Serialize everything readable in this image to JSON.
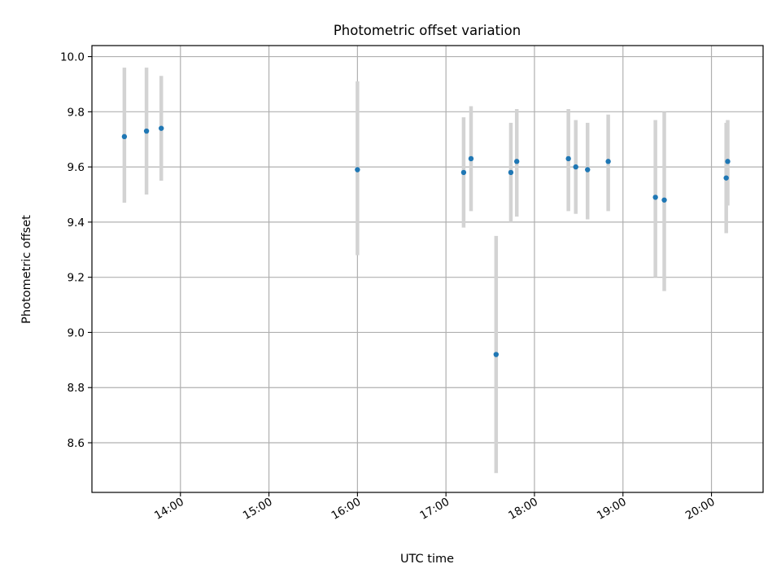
{
  "chart_data": {
    "type": "scatter",
    "title": "Photometric offset variation",
    "xlabel": "UTC time",
    "ylabel": "Photometric offset",
    "x_axis_kind": "time-of-day",
    "xlim": [
      "13:00",
      "20:35"
    ],
    "ylim": [
      8.42,
      10.04
    ],
    "x_ticks": [
      "14:00",
      "15:00",
      "16:00",
      "17:00",
      "18:00",
      "19:00",
      "20:00"
    ],
    "y_ticks": [
      "8.6",
      "8.8",
      "9.0",
      "9.2",
      "9.4",
      "9.6",
      "9.8",
      "10.0"
    ],
    "grid": true,
    "legend": "none",
    "colors": {
      "point": "#1f77b4",
      "error_bar": "#d3d3d3",
      "grid": "#b0b0b0",
      "axes": "#000000"
    },
    "series": [
      {
        "points": [
          {
            "x": "13:22",
            "y": 9.71,
            "ylo": 9.47,
            "yhi": 9.96
          },
          {
            "x": "13:37",
            "y": 9.73,
            "ylo": 9.5,
            "yhi": 9.96
          },
          {
            "x": "13:47",
            "y": 9.74,
            "ylo": 9.55,
            "yhi": 9.93
          },
          {
            "x": "16:00",
            "y": 9.59,
            "ylo": 9.28,
            "yhi": 9.91
          },
          {
            "x": "17:12",
            "y": 9.58,
            "ylo": 9.38,
            "yhi": 9.78
          },
          {
            "x": "17:17",
            "y": 9.63,
            "ylo": 9.44,
            "yhi": 9.82
          },
          {
            "x": "17:34",
            "y": 8.92,
            "ylo": 8.49,
            "yhi": 9.35
          },
          {
            "x": "17:44",
            "y": 9.58,
            "ylo": 9.4,
            "yhi": 9.76
          },
          {
            "x": "17:48",
            "y": 9.62,
            "ylo": 9.42,
            "yhi": 9.81
          },
          {
            "x": "18:23",
            "y": 9.63,
            "ylo": 9.44,
            "yhi": 9.81
          },
          {
            "x": "18:28",
            "y": 9.6,
            "ylo": 9.43,
            "yhi": 9.77
          },
          {
            "x": "18:36",
            "y": 9.59,
            "ylo": 9.41,
            "yhi": 9.76
          },
          {
            "x": "18:50",
            "y": 9.62,
            "ylo": 9.44,
            "yhi": 9.79
          },
          {
            "x": "19:22",
            "y": 9.49,
            "ylo": 9.2,
            "yhi": 9.77
          },
          {
            "x": "19:28",
            "y": 9.48,
            "ylo": 9.15,
            "yhi": 9.8
          },
          {
            "x": "20:10",
            "y": 9.56,
            "ylo": 9.36,
            "yhi": 9.76
          },
          {
            "x": "20:11",
            "y": 9.62,
            "ylo": 9.46,
            "yhi": 9.77
          }
        ]
      }
    ]
  }
}
